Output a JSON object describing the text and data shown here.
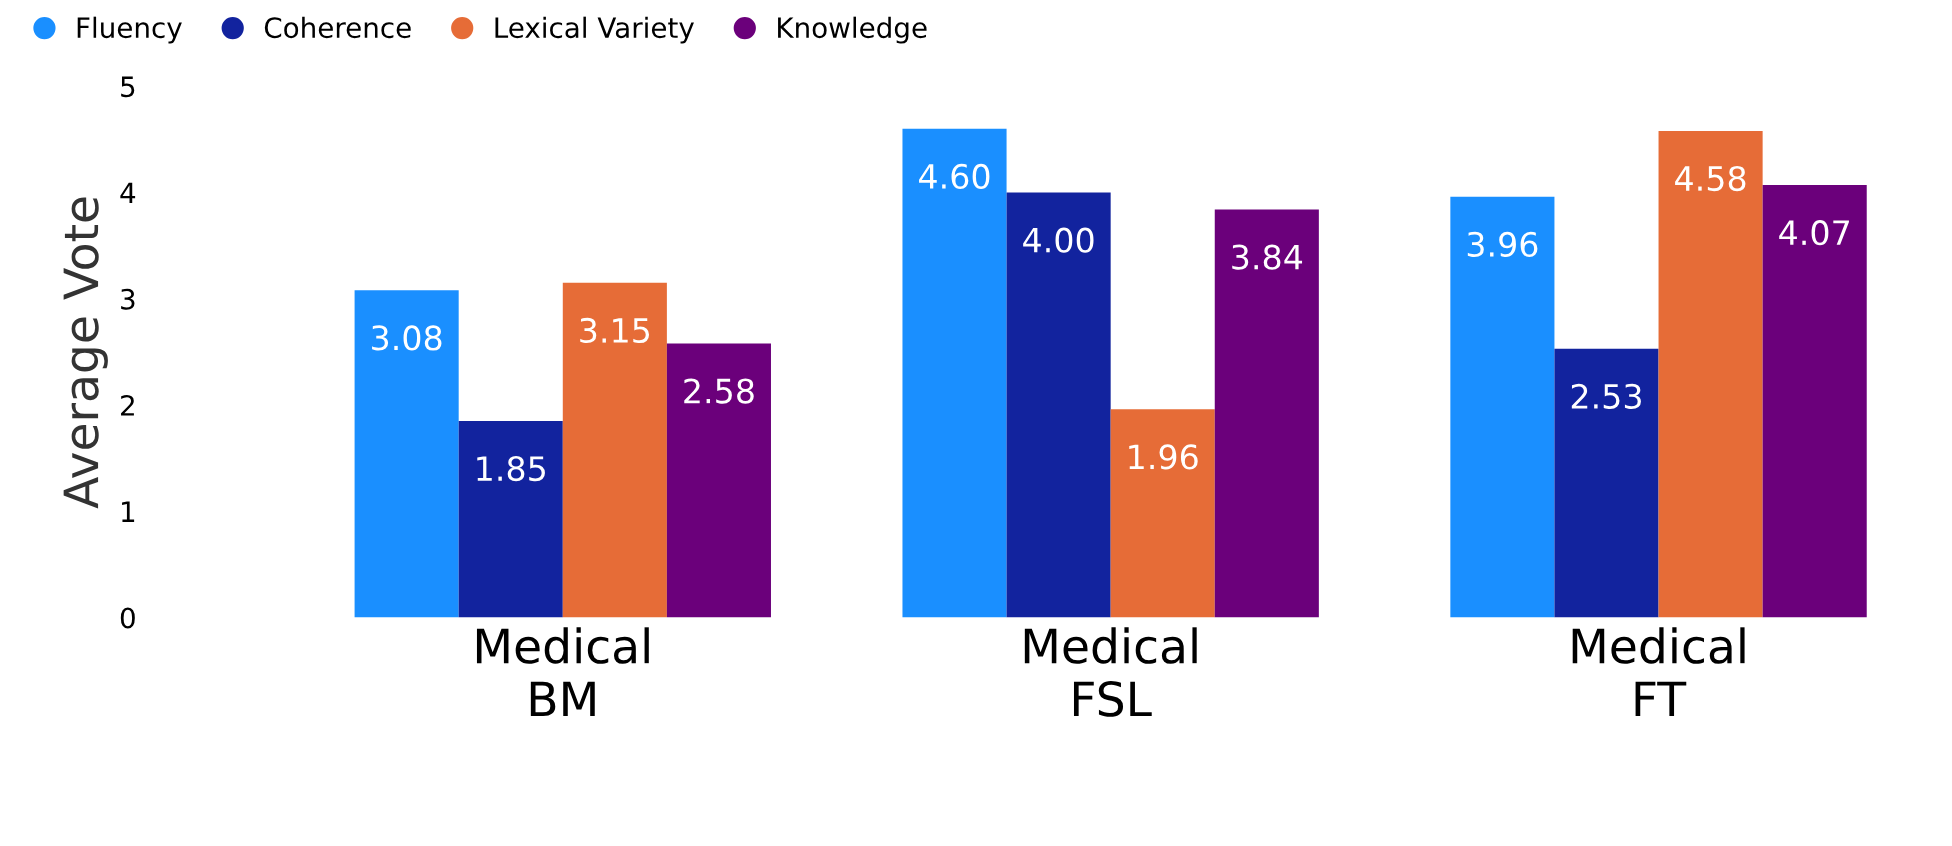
{
  "chart_data": {
    "type": "bar",
    "ylabel": "Average Vote",
    "categories": [
      "Medical\nBM",
      "Medical\nFSL",
      "Medical\nFT"
    ],
    "series": [
      {
        "name": "Fluency",
        "color": "#1a8fff",
        "values": [
          3.08,
          4.6,
          3.96
        ],
        "value_labels": [
          "3.08",
          "4.60",
          "3.96"
        ]
      },
      {
        "name": "Coherence",
        "color": "#12239e",
        "values": [
          1.85,
          4.0,
          2.53
        ],
        "value_labels": [
          "1.85",
          "4.00",
          "2.53"
        ]
      },
      {
        "name": "Lexical Variety",
        "color": "#e66c37",
        "values": [
          3.15,
          1.96,
          4.58
        ],
        "value_labels": [
          "3.15",
          "1.96",
          "4.58"
        ]
      },
      {
        "name": "Knowledge",
        "color": "#6b007b",
        "values": [
          2.58,
          3.84,
          4.07
        ],
        "value_labels": [
          "2.58",
          "3.84",
          "4.07"
        ]
      }
    ],
    "ylim": [
      0,
      5
    ],
    "yticks": [
      0,
      1,
      2,
      3,
      4,
      5
    ],
    "grid": false,
    "legend": "top left"
  }
}
